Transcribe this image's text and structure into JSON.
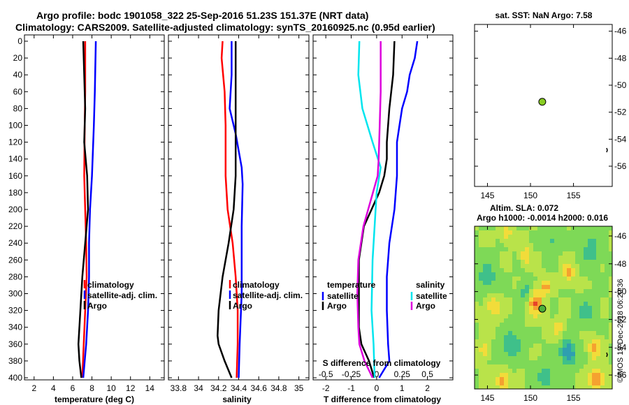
{
  "header": {
    "title_line1": "Argo profile: bodc 1901058_322 25-Sep-2016 51.23S 151.37E (NRT data)",
    "title_line2": "Climatology: CARS2009. Satellite-adjusted climatology: synTS_20160925.nc (0.95d earlier)"
  },
  "credit": "©IMOS 13-Dec-2018 06:20:36",
  "colors": {
    "argo": "#000000",
    "climatology": "#ff0000",
    "satellite_adj": "#0000ff",
    "salinity_sat": "#00e5ee",
    "salinity_argo": "#dd00dd",
    "land": "#ffffff",
    "marker": "#88cc22"
  },
  "chart_data": [
    {
      "type": "line",
      "id": "temperature",
      "xlabel": "temperature (deg C)",
      "ylabel": "",
      "xlim": [
        1,
        15.5
      ],
      "ylim": [
        400,
        0
      ],
      "xticks": [
        2,
        4,
        6,
        8,
        10,
        12,
        14
      ],
      "xticklabels": [
        "2",
        "4",
        "6",
        "8",
        "10",
        "12",
        "14"
      ],
      "yticks": [
        0,
        20,
        40,
        60,
        80,
        100,
        120,
        140,
        160,
        180,
        200,
        220,
        240,
        260,
        280,
        300,
        320,
        340,
        360,
        380,
        400
      ],
      "yticklabels": [
        "0",
        "20",
        "40",
        "60",
        "80",
        "100",
        "120",
        "140",
        "160",
        "180",
        "200",
        "220",
        "240",
        "260",
        "280",
        "300",
        "320",
        "340",
        "360",
        "380",
        "400"
      ],
      "legend": [
        "climatology",
        "satellite-adj. clim.",
        "Argo"
      ],
      "legend_placement": "center-right",
      "series": [
        {
          "name": "climatology",
          "color": "#ff0000",
          "points": [
            [
              7.3,
              0
            ],
            [
              7.3,
              60
            ],
            [
              7.25,
              100
            ],
            [
              7.2,
              160
            ],
            [
              7.3,
              200
            ],
            [
              7.4,
              240
            ],
            [
              7.45,
              280
            ],
            [
              7.3,
              320
            ],
            [
              7.15,
              360
            ],
            [
              7.0,
              400
            ]
          ]
        },
        {
          "name": "satellite-adj. clim.",
          "color": "#0000ff",
          "points": [
            [
              8.4,
              0
            ],
            [
              8.3,
              60
            ],
            [
              8.2,
              100
            ],
            [
              8.0,
              160
            ],
            [
              7.8,
              200
            ],
            [
              7.7,
              240
            ],
            [
              7.7,
              280
            ],
            [
              7.6,
              320
            ],
            [
              7.4,
              360
            ],
            [
              7.1,
              400
            ]
          ]
        },
        {
          "name": "Argo",
          "color": "#000000",
          "points": [
            [
              7.1,
              0
            ],
            [
              7.2,
              40
            ],
            [
              7.3,
              80
            ],
            [
              7.2,
              120
            ],
            [
              7.5,
              160
            ],
            [
              7.6,
              200
            ],
            [
              7.3,
              240
            ],
            [
              7.0,
              280
            ],
            [
              6.8,
              320
            ],
            [
              6.6,
              360
            ],
            [
              6.7,
              380
            ],
            [
              6.9,
              400
            ]
          ]
        }
      ]
    },
    {
      "type": "line",
      "id": "salinity",
      "xlabel": "salinity",
      "ylabel": "",
      "xlim": [
        33.7,
        35.1
      ],
      "ylim": [
        400,
        0
      ],
      "xticks": [
        33.8,
        34,
        34.2,
        34.4,
        34.6,
        34.8,
        35
      ],
      "xticklabels": [
        "33.8",
        "34",
        "34.2",
        "34.4",
        "34.6",
        "34.8",
        "35"
      ],
      "legend": [
        "climatology",
        "satellite-adj. clim.",
        "Argo"
      ],
      "legend_placement": "center-right",
      "series": [
        {
          "name": "climatology",
          "color": "#ff0000",
          "points": [
            [
              34.24,
              0
            ],
            [
              34.23,
              20
            ],
            [
              34.26,
              60
            ],
            [
              34.27,
              100
            ],
            [
              34.27,
              160
            ],
            [
              34.29,
              200
            ],
            [
              34.34,
              240
            ],
            [
              34.37,
              280
            ],
            [
              34.39,
              320
            ],
            [
              34.39,
              360
            ],
            [
              34.38,
              400
            ]
          ]
        },
        {
          "name": "satellite-adj. clim.",
          "color": "#0000ff",
          "points": [
            [
              34.33,
              0
            ],
            [
              34.33,
              40
            ],
            [
              34.31,
              80
            ],
            [
              34.37,
              110
            ],
            [
              34.43,
              150
            ],
            [
              34.44,
              170
            ],
            [
              34.43,
              220
            ],
            [
              34.43,
              300
            ],
            [
              34.41,
              360
            ],
            [
              34.4,
              400
            ]
          ]
        },
        {
          "name": "Argo",
          "color": "#000000",
          "points": [
            [
              34.37,
              0
            ],
            [
              34.37,
              80
            ],
            [
              34.37,
              160
            ],
            [
              34.35,
              200
            ],
            [
              34.3,
              240
            ],
            [
              34.24,
              280
            ],
            [
              34.2,
              320
            ],
            [
              34.19,
              350
            ],
            [
              34.2,
              360
            ],
            [
              34.26,
              380
            ],
            [
              34.33,
              400
            ]
          ]
        }
      ]
    },
    {
      "type": "line",
      "id": "difference",
      "xlabel": "T difference from climatology",
      "xlabel_top": "S difference from climatology",
      "xlim": [
        -2.5,
        3.0
      ],
      "ylim": [
        400,
        0
      ],
      "xticks": [
        -2,
        -1,
        0,
        1,
        2
      ],
      "xticklabels": [
        "-2",
        "-1",
        "0",
        "1",
        "2"
      ],
      "xticks_top": [
        -0.5,
        -0.25,
        0,
        0.25,
        0.5
      ],
      "xticklabels_top": [
        "-0.5",
        "-0.25",
        "0",
        "0.25",
        "0.5"
      ],
      "legend_temperature": {
        "title": "temperature",
        "entries": [
          "satellite",
          "Argo"
        ]
      },
      "legend_salinity": {
        "title": "salinity",
        "entries": [
          "satellite",
          "Argo"
        ]
      },
      "legend_placement": "lower-center",
      "series": [
        {
          "name": "temperature satellite",
          "color": "#0000ff",
          "points": [
            [
              1.6,
              0
            ],
            [
              1.5,
              20
            ],
            [
              1.3,
              40
            ],
            [
              1.2,
              60
            ],
            [
              1.0,
              80
            ],
            [
              0.9,
              100
            ],
            [
              0.8,
              120
            ],
            [
              0.8,
              160
            ],
            [
              0.7,
              200
            ],
            [
              0.5,
              240
            ],
            [
              0.4,
              280
            ],
            [
              0.4,
              320
            ],
            [
              0.45,
              360
            ],
            [
              0.5,
              380
            ],
            [
              0.1,
              400
            ]
          ]
        },
        {
          "name": "temperature Argo",
          "color": "#000000",
          "points": [
            [
              0.7,
              0
            ],
            [
              0.65,
              40
            ],
            [
              0.5,
              80
            ],
            [
              0.4,
              120
            ],
            [
              0.4,
              140
            ],
            [
              0.3,
              160
            ],
            [
              0.1,
              180
            ],
            [
              -0.2,
              200
            ],
            [
              -0.5,
              220
            ],
            [
              -0.6,
              240
            ],
            [
              -0.7,
              260
            ],
            [
              -0.7,
              300
            ],
            [
              -0.7,
              340
            ],
            [
              -0.6,
              360
            ],
            [
              -0.3,
              380
            ],
            [
              -0.1,
              400
            ]
          ]
        },
        {
          "name": "salinity satellite",
          "color": "#00e5ee",
          "points": [
            [
              -0.17,
              0
            ],
            [
              -0.18,
              40
            ],
            [
              -0.14,
              80
            ],
            [
              -0.04,
              120
            ],
            [
              0.04,
              150
            ],
            [
              0.0,
              180
            ],
            [
              -0.02,
              220
            ],
            [
              -0.04,
              260
            ],
            [
              -0.05,
              320
            ],
            [
              -0.03,
              360
            ],
            [
              -0.02,
              400
            ]
          ]
        },
        {
          "name": "salinity Argo",
          "color": "#dd00dd",
          "points": [
            [
              0.04,
              0
            ],
            [
              0.04,
              60
            ],
            [
              0.03,
              100
            ],
            [
              0.02,
              140
            ],
            [
              0.01,
              160
            ],
            [
              -0.06,
              190
            ],
            [
              -0.13,
              220
            ],
            [
              -0.18,
              260
            ],
            [
              -0.19,
              300
            ],
            [
              -0.18,
              340
            ],
            [
              -0.17,
              360
            ],
            [
              -0.12,
              380
            ],
            [
              -0.04,
              400
            ]
          ]
        }
      ]
    },
    {
      "type": "scatter",
      "id": "sst_map",
      "title": "sat. SST: NaN Argo: 7.58",
      "xlim": [
        143.5,
        159.5
      ],
      "ylim": [
        -57.5,
        -45.5
      ],
      "xticks": [
        145,
        150,
        155
      ],
      "xticklabels": [
        "145",
        "150",
        "155"
      ],
      "yticks": [
        -46,
        -48,
        -50,
        -52,
        -54,
        -56
      ],
      "yticklabels": [
        "-46",
        "-48",
        "-50",
        "-52",
        "-54",
        "-56"
      ],
      "profile_location": [
        151.37,
        -51.23
      ]
    },
    {
      "type": "heatmap",
      "id": "sla_map",
      "title_line1": "Altim. SLA: 0.072",
      "title_line2": "Argo h1000: -0.0014 h2000: 0.016",
      "xlim": [
        143.5,
        159.5
      ],
      "ylim": [
        -57.0,
        -45.3
      ],
      "xticks": [
        145,
        150,
        155
      ],
      "xticklabels": [
        "145",
        "150",
        "155"
      ],
      "yticks": [
        -46,
        -48,
        -50,
        -52,
        -54,
        -56
      ],
      "yticklabels": [
        "-46",
        "-48",
        "-50",
        "-52",
        "-54",
        "-56"
      ],
      "profile_location": [
        151.37,
        -51.23
      ],
      "colormap": [
        "#1a4dd6",
        "#2f9fb0",
        "#3fc08a",
        "#7ed957",
        "#b9e34a",
        "#f2dc3a",
        "#f5a130",
        "#e8432a"
      ],
      "features": [
        {
          "lon": 154.4,
          "lat": -54.4,
          "value": -0.9,
          "spread": 0.9
        },
        {
          "lon": 150.6,
          "lat": -50.8,
          "value": 0.85,
          "spread": 0.9
        },
        {
          "lon": 151.8,
          "lat": -49.6,
          "value": 0.8,
          "spread": 0.5
        },
        {
          "lon": 157.7,
          "lat": -56.3,
          "value": 0.95,
          "spread": 0.8
        },
        {
          "lon": 157.5,
          "lat": -54.1,
          "value": 0.7,
          "spread": 0.7
        },
        {
          "lon": 145.7,
          "lat": -51.1,
          "value": 0.6,
          "spread": 0.8
        },
        {
          "lon": 154.4,
          "lat": -48.6,
          "value": 0.65,
          "spread": 0.7
        },
        {
          "lon": 146.8,
          "lat": -56.4,
          "value": 0.75,
          "spread": 0.7
        },
        {
          "lon": 149.5,
          "lat": -47.4,
          "value": 0.55,
          "spread": 0.6
        },
        {
          "lon": 147.2,
          "lat": -45.8,
          "value": 0.6,
          "spread": 0.6
        },
        {
          "lon": 145.0,
          "lat": -49.0,
          "value": -0.5,
          "spread": 1.1
        },
        {
          "lon": 147.8,
          "lat": -53.8,
          "value": -0.5,
          "spread": 1.2
        },
        {
          "lon": 151.8,
          "lat": -56.2,
          "value": -0.45,
          "spread": 1.1
        },
        {
          "lon": 157.0,
          "lat": -47.0,
          "value": -0.45,
          "spread": 1.1
        },
        {
          "lon": 152.5,
          "lat": -46.3,
          "value": -0.35,
          "spread": 0.9
        },
        {
          "lon": 156.5,
          "lat": -51.5,
          "value": -0.4,
          "spread": 1.0
        },
        {
          "lon": 149.4,
          "lat": -50.0,
          "value": -0.5,
          "spread": 0.7
        },
        {
          "lon": 153.2,
          "lat": -52.7,
          "value": 0.5,
          "spread": 0.6
        },
        {
          "lon": 144.6,
          "lat": -54.2,
          "value": 0.45,
          "spread": 0.6
        }
      ]
    }
  ]
}
